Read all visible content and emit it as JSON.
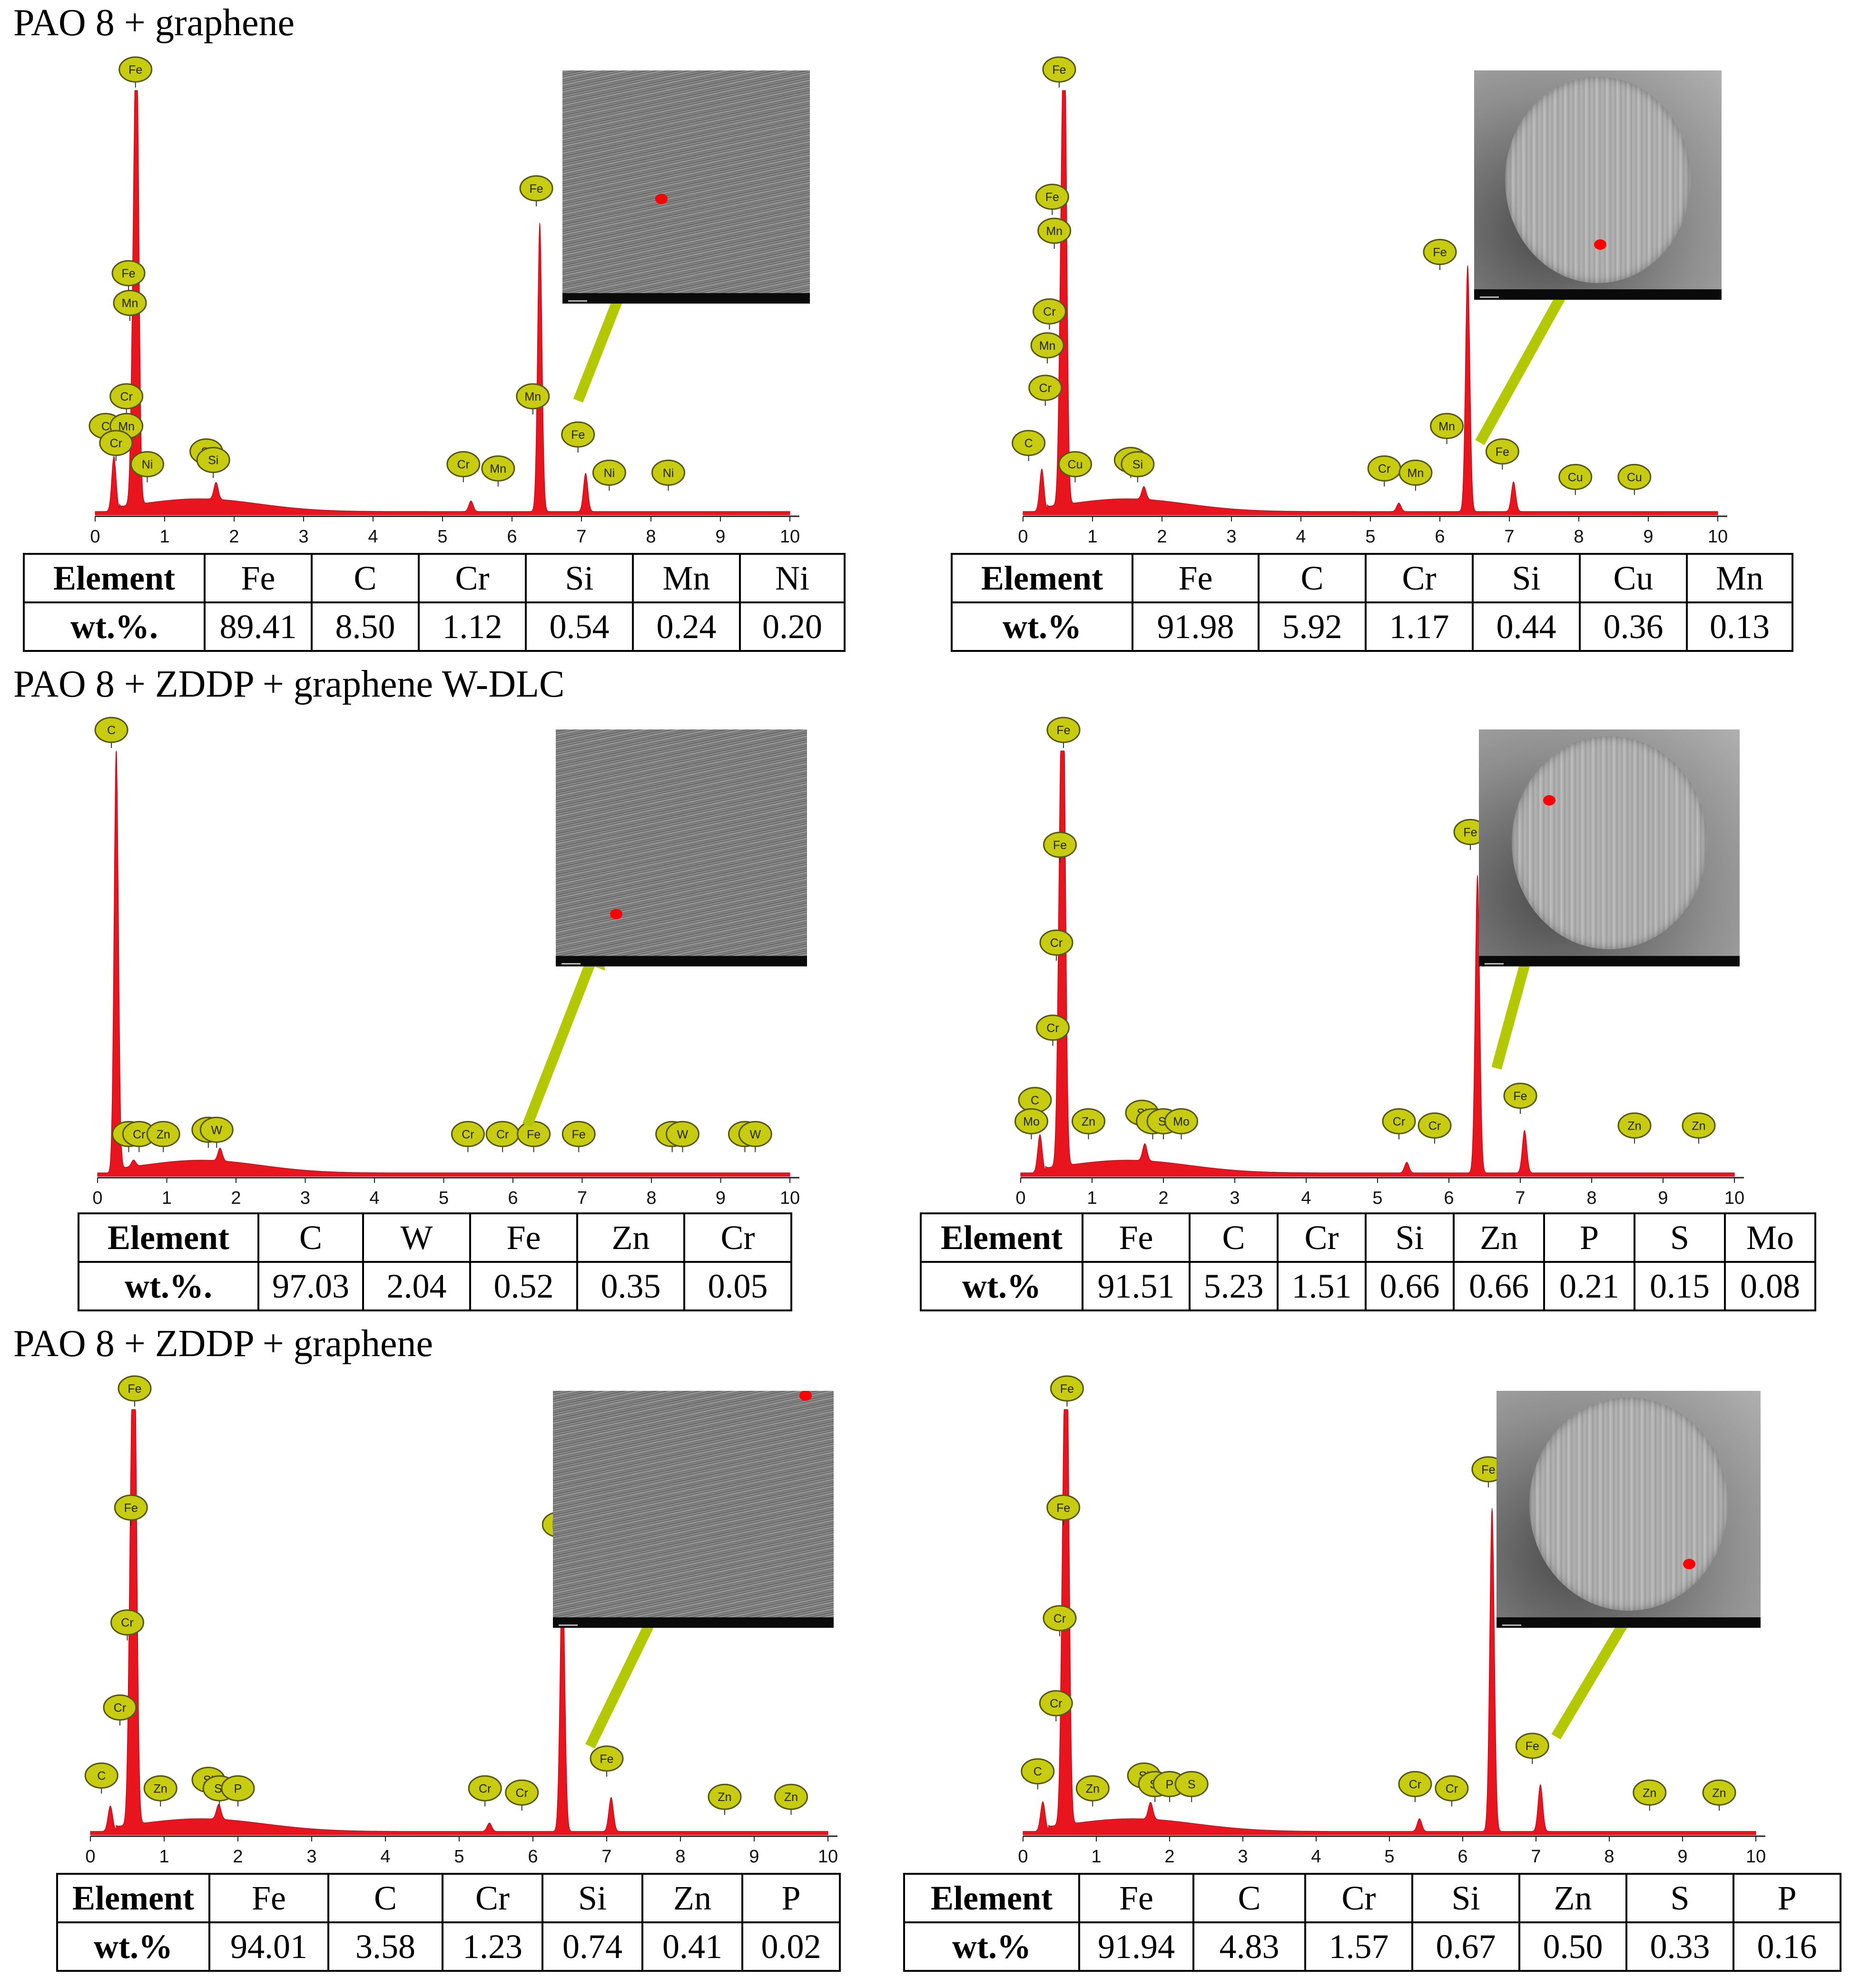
{
  "sections": [
    {
      "title": "PAO 8 + graphene"
    },
    {
      "title": "PAO 8 + ZDDP + graphene W-DLC"
    },
    {
      "title": "PAO 8 + ZDDP + graphene"
    }
  ],
  "colors": {
    "spectrum_fill": "#e8141e",
    "peak_label_fill": "#c8cc10",
    "arrow": "#b4c800",
    "spot": "#ff0000"
  },
  "chart_data": [
    {
      "type": "area",
      "panel": "PAO 8 + graphene (left)",
      "xlim": [
        0,
        10
      ],
      "x_ticks": [
        "0",
        "1",
        "2",
        "3",
        "4",
        "5",
        "6",
        "7",
        "8",
        "9",
        "10"
      ],
      "peaks": [
        {
          "x": 0.27,
          "h": 0.13
        },
        {
          "x": 0.55,
          "h": 0.43
        },
        {
          "x": 0.6,
          "h": 1.0
        },
        {
          "x": 1.74,
          "h": 0.04
        },
        {
          "x": 5.41,
          "h": 0.025
        },
        {
          "x": 6.4,
          "h": 0.68
        },
        {
          "x": 7.06,
          "h": 0.09
        }
      ],
      "peak_labels": [
        {
          "text": "Fe",
          "x": 0.58,
          "h": 1.0
        },
        {
          "text": "Fe",
          "x": 0.48,
          "h": 0.52
        },
        {
          "text": "Mn",
          "x": 0.5,
          "h": 0.45
        },
        {
          "text": "Cr",
          "x": 0.45,
          "h": 0.23
        },
        {
          "text": "C",
          "x": 0.15,
          "h": 0.16
        },
        {
          "text": "Mn",
          "x": 0.45,
          "h": 0.16
        },
        {
          "text": "Cr",
          "x": 0.3,
          "h": 0.12
        },
        {
          "text": "Ni",
          "x": 0.75,
          "h": 0.07
        },
        {
          "text": "Si",
          "x": 1.6,
          "h": 0.1
        },
        {
          "text": "Si",
          "x": 1.7,
          "h": 0.08
        },
        {
          "text": "Cr",
          "x": 5.3,
          "h": 0.07
        },
        {
          "text": "Mn",
          "x": 5.8,
          "h": 0.06
        },
        {
          "text": "Fe",
          "x": 6.35,
          "h": 0.72
        },
        {
          "text": "Mn",
          "x": 6.3,
          "h": 0.23
        },
        {
          "text": "Fe",
          "x": 6.95,
          "h": 0.14
        },
        {
          "text": "Ni",
          "x": 7.4,
          "h": 0.05
        },
        {
          "text": "Ni",
          "x": 8.25,
          "h": 0.05
        }
      ],
      "table": {
        "row_headers": [
          "Element",
          "wt.%."
        ],
        "elements": [
          "Fe",
          "C",
          "Cr",
          "Si",
          "Mn",
          "Ni"
        ],
        "values": [
          "89.41",
          "8.50",
          "1.12",
          "0.54",
          "0.24",
          "0.20"
        ]
      }
    },
    {
      "type": "area",
      "panel": "PAO 8 + graphene (right)",
      "xlim": [
        0,
        10
      ],
      "x_ticks": [
        "0",
        "1",
        "2",
        "3",
        "4",
        "5",
        "6",
        "7",
        "8",
        "9",
        "10"
      ],
      "peaks": [
        {
          "x": 0.27,
          "h": 0.1
        },
        {
          "x": 0.55,
          "h": 0.5
        },
        {
          "x": 0.6,
          "h": 1.0
        },
        {
          "x": 1.74,
          "h": 0.03
        },
        {
          "x": 5.41,
          "h": 0.02
        },
        {
          "x": 6.4,
          "h": 0.58
        },
        {
          "x": 7.06,
          "h": 0.07
        }
      ],
      "peak_labels": [
        {
          "text": "Fe",
          "x": 0.52,
          "h": 1.0
        },
        {
          "text": "Fe",
          "x": 0.42,
          "h": 0.7
        },
        {
          "text": "Mn",
          "x": 0.45,
          "h": 0.62
        },
        {
          "text": "Cr",
          "x": 0.38,
          "h": 0.43
        },
        {
          "text": "Mn",
          "x": 0.35,
          "h": 0.35
        },
        {
          "text": "Cr",
          "x": 0.32,
          "h": 0.25
        },
        {
          "text": "C",
          "x": 0.08,
          "h": 0.12
        },
        {
          "text": "Cu",
          "x": 0.75,
          "h": 0.07
        },
        {
          "text": "Si",
          "x": 1.55,
          "h": 0.08
        },
        {
          "text": "Si",
          "x": 1.65,
          "h": 0.07
        },
        {
          "text": "Cr",
          "x": 5.2,
          "h": 0.06
        },
        {
          "text": "Mn",
          "x": 5.65,
          "h": 0.05
        },
        {
          "text": "Fe",
          "x": 6.0,
          "h": 0.57
        },
        {
          "text": "Mn",
          "x": 6.1,
          "h": 0.16
        },
        {
          "text": "Fe",
          "x": 6.9,
          "h": 0.1
        },
        {
          "text": "Cu",
          "x": 7.95,
          "h": 0.04
        },
        {
          "text": "Cu",
          "x": 8.8,
          "h": 0.04
        }
      ],
      "table": {
        "row_headers": [
          "Element",
          "wt.%"
        ],
        "elements": [
          "Fe",
          "C",
          "Cr",
          "Si",
          "Cu",
          "Mn"
        ],
        "values": [
          "91.98",
          "5.92",
          "1.17",
          "0.44",
          "0.36",
          "0.13"
        ]
      }
    },
    {
      "type": "area",
      "panel": "PAO 8 + ZDDP + graphene W-DLC (left)",
      "xlim": [
        0,
        10
      ],
      "x_ticks": [
        "0",
        "1",
        "2",
        "3",
        "4",
        "5",
        "6",
        "7",
        "8",
        "9",
        "10"
      ],
      "peaks": [
        {
          "x": 0.27,
          "h": 1.0
        },
        {
          "x": 0.52,
          "h": 0.015
        },
        {
          "x": 1.77,
          "h": 0.03
        }
      ],
      "peak_labels": [
        {
          "text": "C",
          "x": 0.2,
          "h": 1.0
        },
        {
          "text": "Cr",
          "x": 0.45,
          "h": 0.05
        },
        {
          "text": "Cr",
          "x": 0.6,
          "h": 0.05
        },
        {
          "text": "Zn",
          "x": 0.95,
          "h": 0.05
        },
        {
          "text": "W",
          "x": 1.6,
          "h": 0.06
        },
        {
          "text": "W",
          "x": 1.72,
          "h": 0.06
        },
        {
          "text": "Cr",
          "x": 5.35,
          "h": 0.05
        },
        {
          "text": "Cr",
          "x": 5.85,
          "h": 0.05
        },
        {
          "text": "Fe",
          "x": 6.3,
          "h": 0.05
        },
        {
          "text": "Fe",
          "x": 6.95,
          "h": 0.05
        },
        {
          "text": "W",
          "x": 8.3,
          "h": 0.05
        },
        {
          "text": "W",
          "x": 8.45,
          "h": 0.05
        },
        {
          "text": "W",
          "x": 9.35,
          "h": 0.05
        },
        {
          "text": "W",
          "x": 9.5,
          "h": 0.05
        }
      ],
      "table": {
        "row_headers": [
          "Element",
          "wt.%."
        ],
        "elements": [
          "C",
          "W",
          "Fe",
          "Zn",
          "Cr"
        ],
        "values": [
          "97.03",
          "2.04",
          "0.52",
          "0.35",
          "0.05"
        ]
      }
    },
    {
      "type": "area",
      "panel": "PAO 8 + ZDDP + graphene W-DLC (right)",
      "xlim": [
        0,
        10
      ],
      "x_ticks": [
        "0",
        "1",
        "2",
        "3",
        "4",
        "5",
        "6",
        "7",
        "8",
        "9",
        "10"
      ],
      "peaks": [
        {
          "x": 0.27,
          "h": 0.09
        },
        {
          "x": 0.55,
          "h": 0.6
        },
        {
          "x": 0.6,
          "h": 1.0
        },
        {
          "x": 1.74,
          "h": 0.04
        },
        {
          "x": 5.41,
          "h": 0.025
        },
        {
          "x": 6.4,
          "h": 0.7
        },
        {
          "x": 7.06,
          "h": 0.1
        }
      ],
      "peak_labels": [
        {
          "text": "Fe",
          "x": 0.6,
          "h": 1.0
        },
        {
          "text": "Fe",
          "x": 0.55,
          "h": 0.73
        },
        {
          "text": "Cr",
          "x": 0.5,
          "h": 0.5
        },
        {
          "text": "Cr",
          "x": 0.45,
          "h": 0.3
        },
        {
          "text": "C",
          "x": 0.2,
          "h": 0.13
        },
        {
          "text": "Mo",
          "x": 0.15,
          "h": 0.08
        },
        {
          "text": "Zn",
          "x": 0.95,
          "h": 0.08
        },
        {
          "text": "Si",
          "x": 1.7,
          "h": 0.1
        },
        {
          "text": "Si",
          "x": 1.85,
          "h": 0.08
        },
        {
          "text": "Si",
          "x": 2.0,
          "h": 0.08
        },
        {
          "text": "Mo",
          "x": 2.25,
          "h": 0.08
        },
        {
          "text": "Cr",
          "x": 5.3,
          "h": 0.08
        },
        {
          "text": "Cr",
          "x": 5.8,
          "h": 0.07
        },
        {
          "text": "Fe",
          "x": 6.3,
          "h": 0.76
        },
        {
          "text": "Fe",
          "x": 7.0,
          "h": 0.14
        },
        {
          "text": "Zn",
          "x": 8.6,
          "h": 0.07
        },
        {
          "text": "Zn",
          "x": 9.5,
          "h": 0.07
        }
      ],
      "table": {
        "row_headers": [
          "Element",
          "wt.%"
        ],
        "elements": [
          "Fe",
          "C",
          "Cr",
          "Si",
          "Zn",
          "P",
          "S",
          "Mo"
        ],
        "values": [
          "91.51",
          "5.23",
          "1.51",
          "0.66",
          "0.66",
          "0.21",
          "0.15",
          "0.08"
        ]
      }
    },
    {
      "type": "area",
      "panel": "PAO 8 + ZDDP + graphene (left)",
      "xlim": [
        0,
        10
      ],
      "x_ticks": [
        "0",
        "1",
        "2",
        "3",
        "4",
        "5",
        "6",
        "7",
        "8",
        "9",
        "10"
      ],
      "peaks": [
        {
          "x": 0.27,
          "h": 0.06
        },
        {
          "x": 0.55,
          "h": 0.6
        },
        {
          "x": 0.6,
          "h": 1.0
        },
        {
          "x": 1.74,
          "h": 0.035
        },
        {
          "x": 5.41,
          "h": 0.02
        },
        {
          "x": 6.4,
          "h": 0.63
        },
        {
          "x": 7.06,
          "h": 0.08
        }
      ],
      "peak_labels": [
        {
          "text": "Fe",
          "x": 0.6,
          "h": 1.0
        },
        {
          "text": "Fe",
          "x": 0.55,
          "h": 0.72
        },
        {
          "text": "Cr",
          "x": 0.5,
          "h": 0.45
        },
        {
          "text": "Cr",
          "x": 0.4,
          "h": 0.25
        },
        {
          "text": "C",
          "x": 0.15,
          "h": 0.09
        },
        {
          "text": "Zn",
          "x": 0.95,
          "h": 0.06
        },
        {
          "text": "Si",
          "x": 1.6,
          "h": 0.08
        },
        {
          "text": "Si",
          "x": 1.75,
          "h": 0.06
        },
        {
          "text": "P",
          "x": 2.0,
          "h": 0.06
        },
        {
          "text": "Cr",
          "x": 5.35,
          "h": 0.06
        },
        {
          "text": "Cr",
          "x": 5.85,
          "h": 0.05
        },
        {
          "text": "Fe",
          "x": 6.35,
          "h": 0.68
        },
        {
          "text": "Fe",
          "x": 7.0,
          "h": 0.13
        },
        {
          "text": "Zn",
          "x": 8.6,
          "h": 0.04
        },
        {
          "text": "Zn",
          "x": 9.5,
          "h": 0.04
        }
      ],
      "table": {
        "row_headers": [
          "Element",
          "wt.%"
        ],
        "elements": [
          "Fe",
          "C",
          "Cr",
          "Si",
          "Zn",
          "P"
        ],
        "values": [
          "94.01",
          "3.58",
          "1.23",
          "0.74",
          "0.41",
          "0.02"
        ]
      }
    },
    {
      "type": "area",
      "panel": "PAO 8 + ZDDP + graphene (right)",
      "xlim": [
        0,
        10
      ],
      "x_ticks": [
        "0",
        "1",
        "2",
        "3",
        "4",
        "5",
        "6",
        "7",
        "8",
        "9",
        "10"
      ],
      "peaks": [
        {
          "x": 0.27,
          "h": 0.07
        },
        {
          "x": 0.55,
          "h": 0.6
        },
        {
          "x": 0.6,
          "h": 1.0
        },
        {
          "x": 1.74,
          "h": 0.04
        },
        {
          "x": 5.41,
          "h": 0.03
        },
        {
          "x": 6.4,
          "h": 0.76
        },
        {
          "x": 7.06,
          "h": 0.11
        }
      ],
      "peak_labels": [
        {
          "text": "Fe",
          "x": 0.6,
          "h": 1.0
        },
        {
          "text": "Fe",
          "x": 0.55,
          "h": 0.72
        },
        {
          "text": "Cr",
          "x": 0.5,
          "h": 0.46
        },
        {
          "text": "Cr",
          "x": 0.45,
          "h": 0.26
        },
        {
          "text": "C",
          "x": 0.2,
          "h": 0.1
        },
        {
          "text": "Zn",
          "x": 0.95,
          "h": 0.06
        },
        {
          "text": "Si",
          "x": 1.65,
          "h": 0.09
        },
        {
          "text": "Si",
          "x": 1.8,
          "h": 0.07
        },
        {
          "text": "P",
          "x": 2.0,
          "h": 0.07
        },
        {
          "text": "S",
          "x": 2.3,
          "h": 0.07
        },
        {
          "text": "Cr",
          "x": 5.35,
          "h": 0.07
        },
        {
          "text": "Cr",
          "x": 5.85,
          "h": 0.06
        },
        {
          "text": "Fe",
          "x": 6.35,
          "h": 0.81
        },
        {
          "text": "Fe",
          "x": 6.95,
          "h": 0.16
        },
        {
          "text": "Zn",
          "x": 8.55,
          "h": 0.05
        },
        {
          "text": "Zn",
          "x": 9.5,
          "h": 0.05
        }
      ],
      "table": {
        "row_headers": [
          "Element",
          "wt.%"
        ],
        "elements": [
          "Fe",
          "C",
          "Cr",
          "Si",
          "Zn",
          "S",
          "P"
        ],
        "values": [
          "91.94",
          "4.83",
          "1.57",
          "0.67",
          "0.50",
          "0.33",
          "0.16"
        ]
      }
    }
  ]
}
